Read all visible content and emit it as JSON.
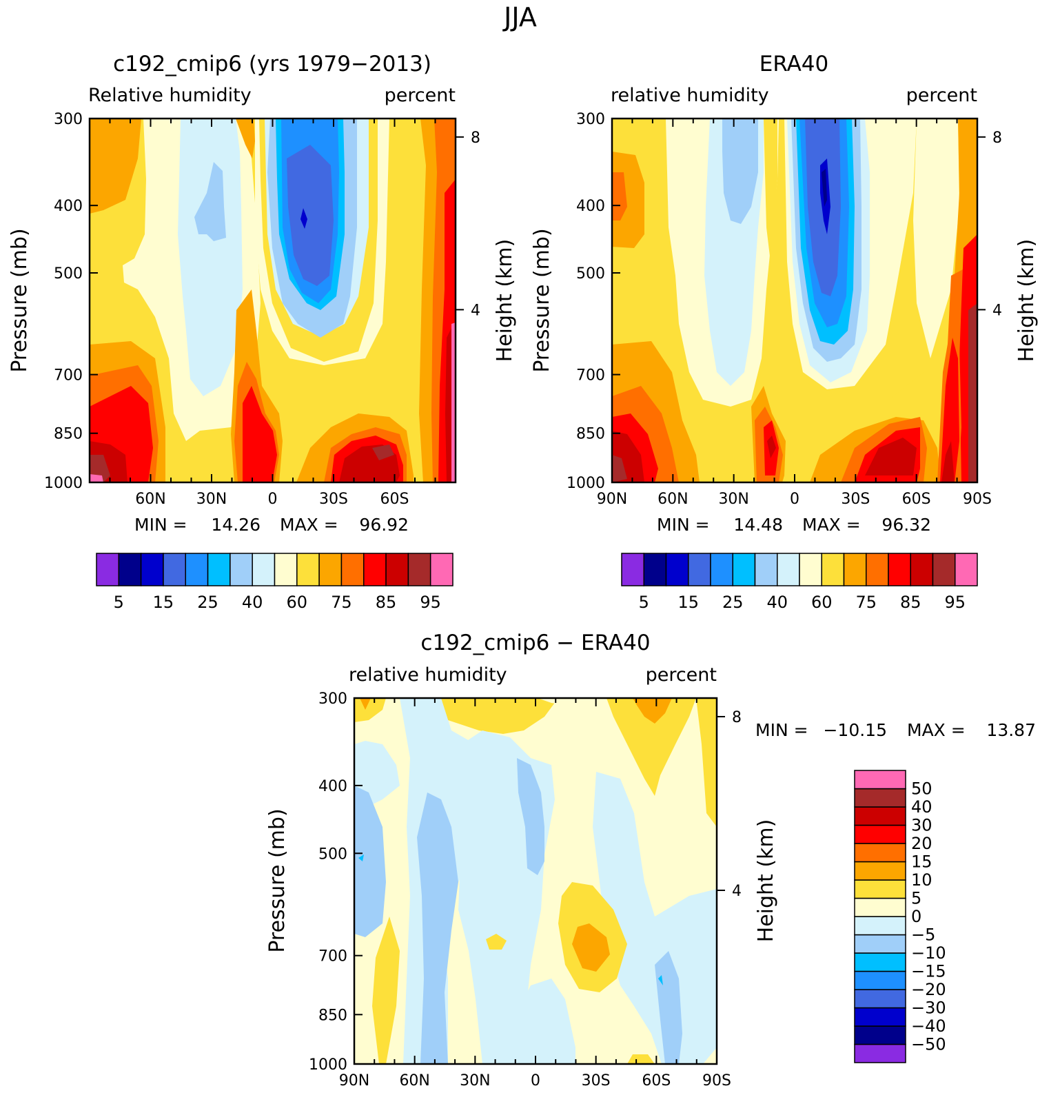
{
  "figure_title": "JJA",
  "chart_data": [
    {
      "type": "heatmap",
      "id": "model",
      "title": "c192_cmip6 (yrs 1979-2013)",
      "left_label": "Relative humidity",
      "right_label": "percent",
      "xlabel": "",
      "ylabel": "Pressure (mb)",
      "y2label": "Height (km)",
      "x_ticks": [
        "60N",
        "30N",
        "0",
        "30S",
        "60S"
      ],
      "x_tick_values": [
        60,
        30,
        0,
        -30,
        -60
      ],
      "xlim": [
        90,
        -90
      ],
      "y_ticks": [
        "300",
        "400",
        "500",
        "700",
        "850",
        "1000"
      ],
      "y_tick_values": [
        300,
        400,
        500,
        700,
        850,
        1000
      ],
      "ylim": [
        300,
        1000
      ],
      "y2_ticks": [
        "8",
        "4"
      ],
      "y2_tick_values": [
        8,
        4
      ],
      "stats": {
        "min_label": "MIN =",
        "min": "14.26",
        "max_label": "MAX =",
        "max": "96.92"
      },
      "colorbar": {
        "orientation": "horizontal",
        "colors": [
          "#8a2be2",
          "#00008b",
          "#0000cd",
          "#4169e1",
          "#1e90ff",
          "#00bfff",
          "#a0cff9",
          "#d4f2fb",
          "#fffdd0",
          "#fde03a",
          "#fca600",
          "#ff6f00",
          "#ff0000",
          "#cc0000",
          "#a52a2a",
          "#ff69b4"
        ],
        "labels": [
          "5",
          "15",
          "25",
          "40",
          "60",
          "75",
          "85",
          "95"
        ],
        "levels": [
          5,
          10,
          15,
          20,
          25,
          30,
          40,
          50,
          60,
          70,
          75,
          80,
          85,
          90,
          95
        ]
      }
    },
    {
      "type": "heatmap",
      "id": "obs",
      "title": "ERA40",
      "left_label": "relative humidity",
      "right_label": "percent",
      "xlabel": "",
      "ylabel": "Pressure (mb)",
      "y2label": "Height (km)",
      "x_ticks": [
        "90N",
        "60N",
        "30N",
        "0",
        "30S",
        "60S",
        "90S"
      ],
      "x_tick_values": [
        90,
        60,
        30,
        0,
        -30,
        -60,
        -90
      ],
      "xlim": [
        90,
        -90
      ],
      "y_ticks": [
        "300",
        "400",
        "500",
        "700",
        "850",
        "1000"
      ],
      "y_tick_values": [
        300,
        400,
        500,
        700,
        850,
        1000
      ],
      "ylim": [
        300,
        1000
      ],
      "y2_ticks": [
        "8",
        "4"
      ],
      "y2_tick_values": [
        8,
        4
      ],
      "stats": {
        "min_label": "MIN =",
        "min": "14.48",
        "max_label": "MAX =",
        "max": "96.32"
      },
      "colorbar": {
        "orientation": "horizontal",
        "colors": [
          "#8a2be2",
          "#00008b",
          "#0000cd",
          "#4169e1",
          "#1e90ff",
          "#00bfff",
          "#a0cff9",
          "#d4f2fb",
          "#fffdd0",
          "#fde03a",
          "#fca600",
          "#ff6f00",
          "#ff0000",
          "#cc0000",
          "#a52a2a",
          "#ff69b4"
        ],
        "labels": [
          "5",
          "15",
          "25",
          "40",
          "60",
          "75",
          "85",
          "95"
        ],
        "levels": [
          5,
          10,
          15,
          20,
          25,
          30,
          40,
          50,
          60,
          70,
          75,
          80,
          85,
          90,
          95
        ]
      }
    },
    {
      "type": "heatmap",
      "id": "diff",
      "title": "c192_cmip6 - ERA40",
      "left_label": "relative humidity",
      "right_label": "percent",
      "xlabel": "",
      "ylabel": "Pressure (mb)",
      "y2label": "Height (km)",
      "x_ticks": [
        "90N",
        "60N",
        "30N",
        "0",
        "30S",
        "60S",
        "90S"
      ],
      "x_tick_values": [
        90,
        60,
        30,
        0,
        -30,
        -60,
        -90
      ],
      "xlim": [
        90,
        -90
      ],
      "y_ticks": [
        "300",
        "400",
        "500",
        "700",
        "850",
        "1000"
      ],
      "y_tick_values": [
        300,
        400,
        500,
        700,
        850,
        1000
      ],
      "ylim": [
        300,
        1000
      ],
      "y2_ticks": [
        "8",
        "4"
      ],
      "y2_tick_values": [
        8,
        4
      ],
      "stats": {
        "min_label": "MIN =",
        "min": "-10.15",
        "max_label": "MAX =",
        "max": "13.87"
      },
      "colorbar": {
        "orientation": "vertical",
        "colors": [
          "#8a2be2",
          "#00008b",
          "#0000cd",
          "#4169e1",
          "#1e90ff",
          "#00bfff",
          "#a0cff9",
          "#d4f2fb",
          "#fffdd0",
          "#fde03a",
          "#fca600",
          "#ff6f00",
          "#ff0000",
          "#cc0000",
          "#a52a2a",
          "#ff69b4"
        ],
        "labels": [
          "-50",
          "-40",
          "-30",
          "-20",
          "-15",
          "-10",
          "-5",
          "0",
          "5",
          "10",
          "15",
          "20",
          "30",
          "40",
          "50"
        ],
        "levels": [
          -50,
          -40,
          -30,
          -20,
          -15,
          -10,
          -5,
          0,
          5,
          10,
          15,
          20,
          30,
          40,
          50
        ]
      }
    }
  ]
}
